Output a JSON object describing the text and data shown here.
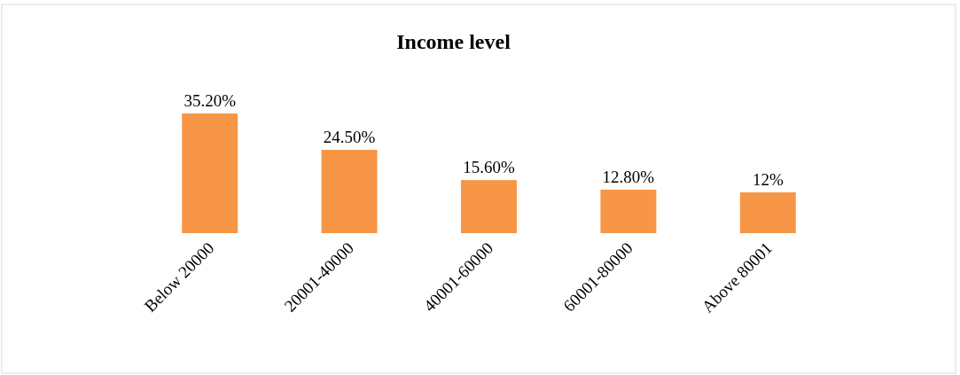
{
  "chart_data": {
    "type": "bar",
    "title": "Income level",
    "categories": [
      "Below 20000",
      "20001-40000",
      "40001-60000",
      "60001-80000",
      "Above 80001"
    ],
    "values": [
      35.2,
      24.5,
      15.6,
      12.8,
      12
    ],
    "value_labels": [
      "35.20%",
      "24.50%",
      "15.60%",
      "12.80%",
      "12%"
    ],
    "color": "#f79646"
  }
}
